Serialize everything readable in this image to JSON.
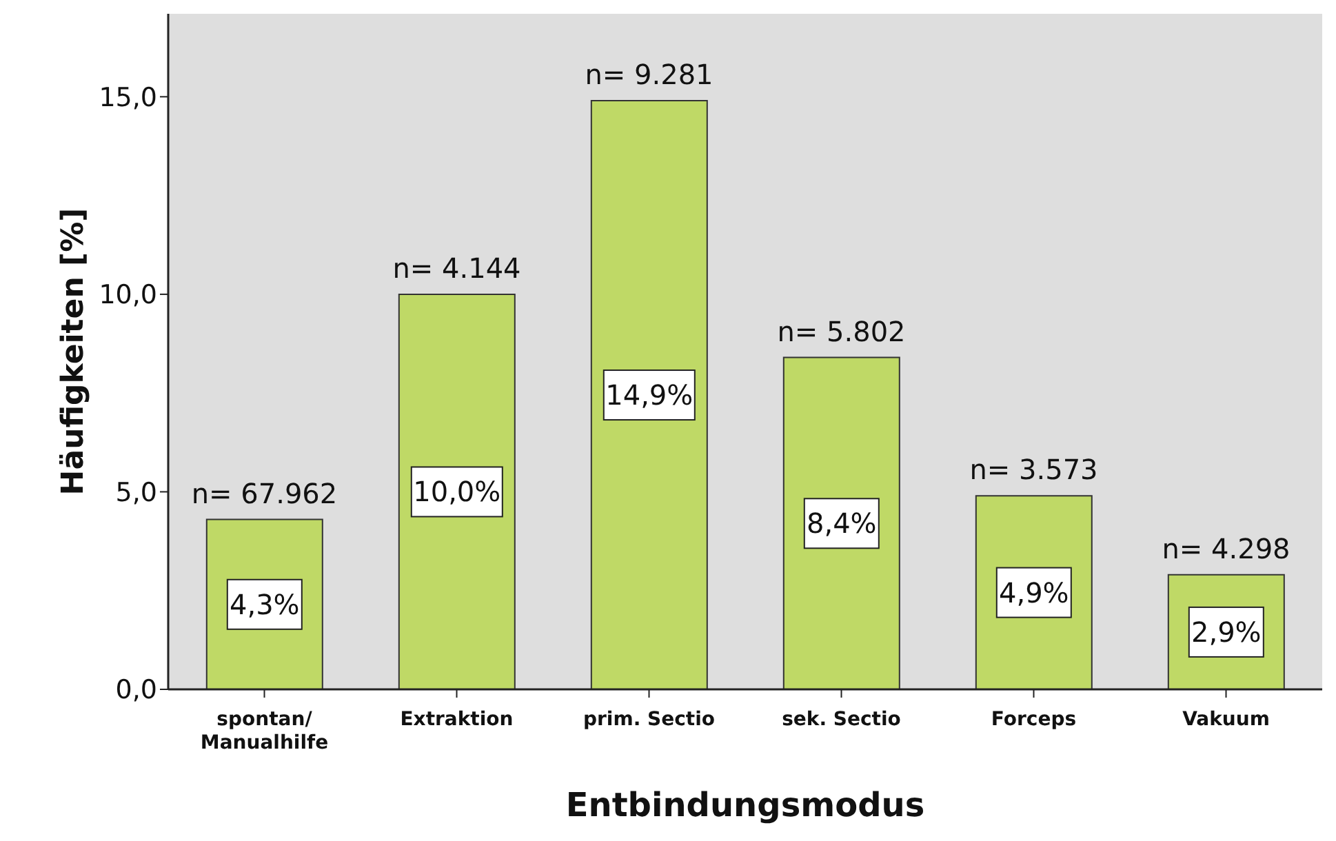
{
  "chart_data": {
    "type": "bar",
    "xlabel": "Entbindungsmodus",
    "ylabel": "Häufigkeiten [%]",
    "categories": [
      "spontan/\nManualhilfe",
      "Extraktion",
      "prim. Sectio",
      "sek. Sectio",
      "Forceps",
      "Vakuum"
    ],
    "values": [
      4.3,
      10.0,
      14.9,
      8.4,
      4.9,
      2.9
    ],
    "value_labels": [
      "4,3%",
      "10,0%",
      "14,9%",
      "8,4%",
      "4,9%",
      "2,9%"
    ],
    "color": "#bfd966",
    "ylim": [
      0,
      17.1
    ],
    "yticks": [
      {
        "value": 0,
        "label": "0,0"
      },
      {
        "value": 5,
        "label": "5,0"
      },
      {
        "value": 10,
        "label": "10,0"
      },
      {
        "value": 15,
        "label": "15,0"
      }
    ],
    "annotations": [
      {
        "text": "n= 67.962",
        "x": "spontan/\nManualhilfe",
        "y": 4.3
      },
      {
        "text": "n= 4.144",
        "x": "Extraktion",
        "y": 10.0
      },
      {
        "text": "n= 9.281",
        "x": "prim. Sectio",
        "y": 14.9
      },
      {
        "text": "n= 5.802",
        "x": "sek. Sectio",
        "y": 8.4
      },
      {
        "text": "n= 3.573",
        "x": "Forceps",
        "y": 4.9
      },
      {
        "text": "n= 4.298",
        "x": "Vakuum",
        "y": 2.9
      }
    ]
  }
}
